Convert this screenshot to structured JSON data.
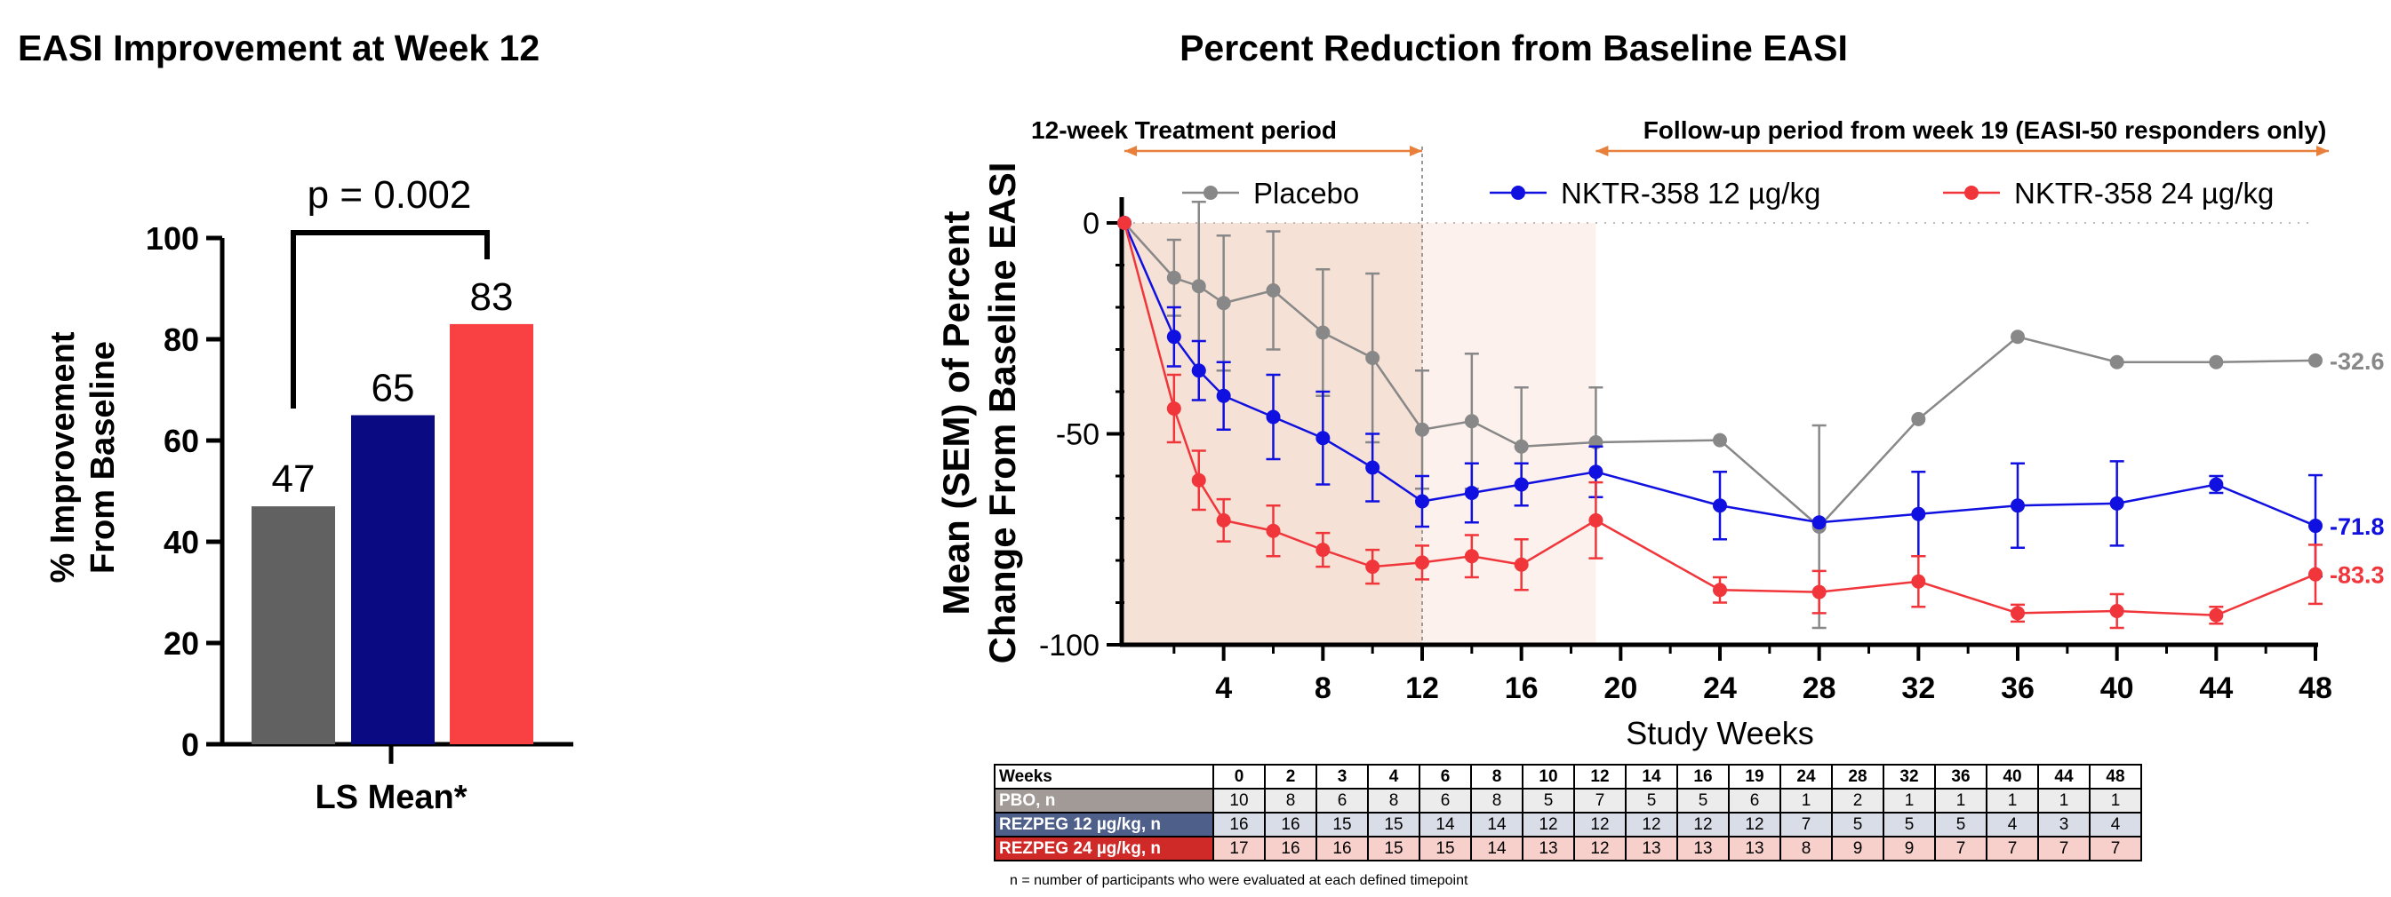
{
  "chart_data": [
    {
      "type": "bar",
      "title": "EASI Improvement at Week 12",
      "ylabel": [
        "% Improvement",
        "From Baseline"
      ],
      "xlabel": "LS Mean*",
      "ylim": [
        0,
        100
      ],
      "yticks": [
        "0",
        "20",
        "40",
        "60",
        "80",
        "100"
      ],
      "values": [
        47,
        65,
        83
      ],
      "value_labels": [
        "47",
        "65",
        "83"
      ],
      "colors": [
        "#616161",
        "#0a0a82",
        "#f94144"
      ],
      "annotation": "p = 0.002",
      "grid": false
    },
    {
      "type": "line",
      "title": "Percent Reduction from Baseline EASI",
      "xlabel": "Study Weeks",
      "ylabel": [
        "Mean (SEM) of Percent",
        "Change From Baseline EASI"
      ],
      "xlim": [
        0,
        48
      ],
      "ylim": [
        -100,
        0
      ],
      "xticks": [
        "4",
        "8",
        "12",
        "16",
        "20",
        "24",
        "28",
        "32",
        "36",
        "40",
        "44",
        "48"
      ],
      "yticks": [
        "0",
        "-50",
        "-100"
      ],
      "period_labels": {
        "treatment": "12-week Treatment period",
        "followup": "Follow-up period from week 19 (EASI-50 responders only)"
      },
      "legend_position": "top",
      "series": [
        {
          "name": "Placebo",
          "color": "#888888",
          "x": [
            0,
            2,
            3,
            4,
            6,
            8,
            10,
            12,
            14,
            16,
            19,
            24,
            28,
            32,
            36,
            40,
            44,
            48
          ],
          "y": [
            0,
            -13,
            -15,
            -19,
            -16,
            -26,
            -32,
            -49,
            -47,
            -53,
            -52,
            -51.5,
            -72,
            -46.5,
            -27,
            -33,
            -33,
            -32.6
          ],
          "err": [
            0,
            9,
            20,
            16,
            14,
            15,
            20,
            14,
            16,
            14,
            13,
            0,
            24,
            0,
            0,
            0,
            0,
            0
          ],
          "end_label": "-32.6"
        },
        {
          "name": "NKTR-358 12 µg/kg",
          "color": "#1010e0",
          "x": [
            0,
            2,
            3,
            4,
            6,
            8,
            10,
            12,
            14,
            16,
            19,
            24,
            28,
            32,
            36,
            40,
            44,
            48
          ],
          "y": [
            0,
            -27,
            -35,
            -41,
            -46,
            -51,
            -58,
            -66,
            -64,
            -62,
            -59,
            -67,
            -71,
            -69,
            -67,
            -66.5,
            -62,
            -71.8
          ],
          "err": [
            0,
            7,
            7,
            8,
            10,
            11,
            8,
            6,
            7,
            5,
            6,
            8,
            0,
            10,
            10,
            10,
            2,
            12
          ],
          "end_label": "-71.8"
        },
        {
          "name": "NKTR-358 24 µg/kg",
          "color": "#f0363b",
          "x": [
            0,
            2,
            3,
            4,
            6,
            8,
            10,
            12,
            14,
            16,
            19,
            24,
            28,
            32,
            36,
            40,
            44,
            48
          ],
          "y": [
            0,
            -44,
            -61,
            -70.5,
            -73,
            -77.5,
            -81.5,
            -80.5,
            -79,
            -81,
            -70.5,
            -87,
            -87.5,
            -85,
            -92.5,
            -92,
            -93,
            -83.3
          ],
          "err": [
            0,
            8,
            7,
            5,
            6,
            4,
            4,
            4,
            5,
            6,
            9,
            3,
            5,
            6,
            2,
            4,
            2,
            7
          ],
          "end_label": "-83.3"
        }
      ],
      "n_table": {
        "header_label": "Weeks",
        "weeks": [
          "0",
          "2",
          "3",
          "4",
          "6",
          "8",
          "10",
          "12",
          "14",
          "16",
          "19",
          "24",
          "28",
          "32",
          "36",
          "40",
          "44",
          "48"
        ],
        "rows": [
          {
            "label": "PBO, n",
            "values": [
              "10",
              "8",
              "6",
              "8",
              "6",
              "8",
              "5",
              "7",
              "5",
              "5",
              "6",
              "1",
              "2",
              "1",
              "1",
              "1",
              "1",
              "1"
            ]
          },
          {
            "label": "REZPEG 12 µg/kg, n",
            "values": [
              "16",
              "16",
              "15",
              "15",
              "14",
              "14",
              "12",
              "12",
              "12",
              "12",
              "12",
              "7",
              "5",
              "5",
              "5",
              "4",
              "3",
              "4"
            ]
          },
          {
            "label": "REZPEG 24 µg/kg, n",
            "values": [
              "17",
              "16",
              "16",
              "15",
              "15",
              "14",
              "13",
              "12",
              "13",
              "13",
              "13",
              "8",
              "9",
              "9",
              "7",
              "7",
              "7",
              "7"
            ]
          }
        ],
        "footnote": "n = number of participants who were evaluated at each defined timepoint"
      }
    }
  ]
}
